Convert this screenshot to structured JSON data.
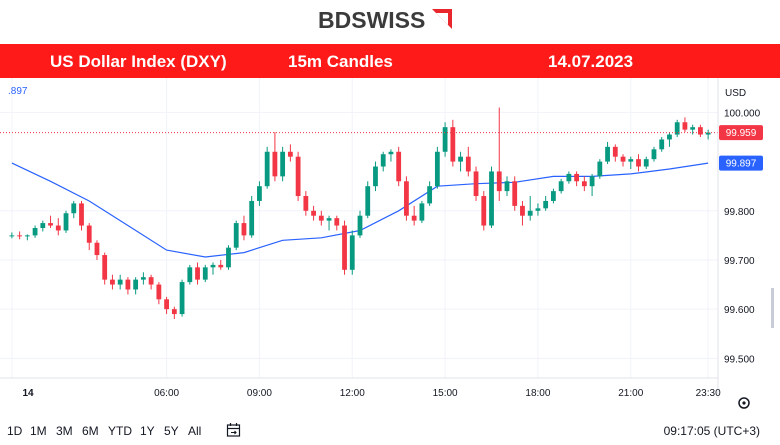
{
  "brand": {
    "part1": "BD",
    "part2": "SWISS",
    "accent": "#e8262b",
    "text_color": "#3b3b3b"
  },
  "banner": {
    "title": "US Dollar Index (DXY)",
    "interval": "15m Candles",
    "date": "14.07.2023",
    "color": "#ff1a1a"
  },
  "chart_data": {
    "type": "candlestick",
    "currency": "USD",
    "ylim": [
      99.46,
      100.07
    ],
    "y_ticks": [
      "100.000",
      "99.800",
      "99.700",
      "99.600",
      "99.500"
    ],
    "y_tick_values": [
      100.0,
      99.8,
      99.7,
      99.6,
      99.5
    ],
    "x_ticks": [
      "14",
      "06:00",
      "09:00",
      "12:00",
      "15:00",
      "18:00",
      "21:00",
      "23:30"
    ],
    "x_tick_values": [
      0,
      20,
      32,
      44,
      56,
      68,
      80,
      90
    ],
    "last_price": {
      "label": "99.959",
      "value": 99.959,
      "color": "#f23645"
    },
    "moving_average": {
      "label": "99.897",
      "value": 99.897,
      "color": "#2962ff",
      "left_label": ".897",
      "points": [
        [
          0,
          99.897
        ],
        [
          5,
          99.86
        ],
        [
          10,
          99.82
        ],
        [
          15,
          99.77
        ],
        [
          20,
          99.72
        ],
        [
          25,
          99.706
        ],
        [
          30,
          99.715
        ],
        [
          35,
          99.74
        ],
        [
          40,
          99.745
        ],
        [
          45,
          99.76
        ],
        [
          50,
          99.8
        ],
        [
          55,
          99.85
        ],
        [
          60,
          99.855
        ],
        [
          65,
          99.858
        ],
        [
          70,
          99.87
        ],
        [
          75,
          99.87
        ],
        [
          80,
          99.875
        ],
        [
          85,
          99.885
        ],
        [
          90,
          99.897
        ]
      ]
    },
    "up_color": "#089981",
    "down_color": "#f23645",
    "candles": [
      [
        99.75,
        99.756,
        99.744,
        99.75
      ],
      [
        99.75,
        99.758,
        99.742,
        99.748
      ],
      [
        99.748,
        99.752,
        99.74,
        99.75
      ],
      [
        99.75,
        99.77,
        99.745,
        99.765
      ],
      [
        99.765,
        99.78,
        99.758,
        99.775
      ],
      [
        99.775,
        99.79,
        99.765,
        99.77
      ],
      [
        99.77,
        99.785,
        99.75,
        99.76
      ],
      [
        99.76,
        99.8,
        99.755,
        99.795
      ],
      [
        99.795,
        99.82,
        99.785,
        99.815
      ],
      [
        99.815,
        99.82,
        99.76,
        99.77
      ],
      [
        99.77,
        99.775,
        99.72,
        99.735
      ],
      [
        99.735,
        99.74,
        99.7,
        99.71
      ],
      [
        99.71,
        99.715,
        99.65,
        99.66
      ],
      [
        99.66,
        99.67,
        99.64,
        99.65
      ],
      [
        99.65,
        99.67,
        99.64,
        99.66
      ],
      [
        99.66,
        99.665,
        99.63,
        99.64
      ],
      [
        99.64,
        99.665,
        99.63,
        99.66
      ],
      [
        99.66,
        99.675,
        99.65,
        99.665
      ],
      [
        99.665,
        99.67,
        99.64,
        99.65
      ],
      [
        99.65,
        99.655,
        99.61,
        99.62
      ],
      [
        99.62,
        99.625,
        99.59,
        99.6
      ],
      [
        99.6,
        99.605,
        99.58,
        99.59
      ],
      [
        99.59,
        99.66,
        99.585,
        99.655
      ],
      [
        99.655,
        99.69,
        99.65,
        99.685
      ],
      [
        99.685,
        99.695,
        99.65,
        99.66
      ],
      [
        99.66,
        99.69,
        99.655,
        99.685
      ],
      [
        99.685,
        99.695,
        99.67,
        99.69
      ],
      [
        99.69,
        99.7,
        99.68,
        99.685
      ],
      [
        99.685,
        99.73,
        99.68,
        99.725
      ],
      [
        99.725,
        99.78,
        99.72,
        99.775
      ],
      [
        99.775,
        99.79,
        99.74,
        99.75
      ],
      [
        99.75,
        99.83,
        99.745,
        99.82
      ],
      [
        99.82,
        99.86,
        99.81,
        99.85
      ],
      [
        99.85,
        99.93,
        99.845,
        99.92
      ],
      [
        99.92,
        99.96,
        99.86,
        99.87
      ],
      [
        99.87,
        99.93,
        99.86,
        99.92
      ],
      [
        99.92,
        99.935,
        99.9,
        99.91
      ],
      [
        99.91,
        99.92,
        99.82,
        99.83
      ],
      [
        99.83,
        99.84,
        99.79,
        99.8
      ],
      [
        99.8,
        99.81,
        99.78,
        99.79
      ],
      [
        99.79,
        99.8,
        99.77,
        99.78
      ],
      [
        99.78,
        99.79,
        99.76,
        99.785
      ],
      [
        99.785,
        99.79,
        99.76,
        99.77
      ],
      [
        99.77,
        99.78,
        99.67,
        99.68
      ],
      [
        99.68,
        99.76,
        99.67,
        99.75
      ],
      [
        99.75,
        99.8,
        99.745,
        99.79
      ],
      [
        99.79,
        99.86,
        99.785,
        99.85
      ],
      [
        99.85,
        99.9,
        99.84,
        99.89
      ],
      [
        99.89,
        99.92,
        99.88,
        99.915
      ],
      [
        99.915,
        99.925,
        99.9,
        99.92
      ],
      [
        99.92,
        99.93,
        99.85,
        99.86
      ],
      [
        99.86,
        99.87,
        99.78,
        99.79
      ],
      [
        99.79,
        99.81,
        99.77,
        99.78
      ],
      [
        99.78,
        99.82,
        99.775,
        99.815
      ],
      [
        99.815,
        99.86,
        99.81,
        99.85
      ],
      [
        99.85,
        99.93,
        99.845,
        99.92
      ],
      [
        99.92,
        99.98,
        99.91,
        99.97
      ],
      [
        99.97,
        99.985,
        99.89,
        99.9
      ],
      [
        99.9,
        99.92,
        99.88,
        99.91
      ],
      [
        99.91,
        99.93,
        99.87,
        99.88
      ],
      [
        99.88,
        99.89,
        99.82,
        99.83
      ],
      [
        99.83,
        99.84,
        99.76,
        99.77
      ],
      [
        99.77,
        99.89,
        99.765,
        99.88
      ],
      [
        99.88,
        100.01,
        99.82,
        99.84
      ],
      [
        99.84,
        99.87,
        99.83,
        99.86
      ],
      [
        99.86,
        99.87,
        99.8,
        99.81
      ],
      [
        99.81,
        99.82,
        99.77,
        99.79
      ],
      [
        99.79,
        99.83,
        99.78,
        99.8
      ],
      [
        99.8,
        99.815,
        99.79,
        99.805
      ],
      [
        99.805,
        99.83,
        99.8,
        99.82
      ],
      [
        99.82,
        99.845,
        99.815,
        99.84
      ],
      [
        99.84,
        99.865,
        99.835,
        99.86
      ],
      [
        99.86,
        99.88,
        99.855,
        99.875
      ],
      [
        99.875,
        99.88,
        99.85,
        99.86
      ],
      [
        99.86,
        99.87,
        99.84,
        99.85
      ],
      [
        99.85,
        99.875,
        99.83,
        99.87
      ],
      [
        99.87,
        99.905,
        99.865,
        99.9
      ],
      [
        99.9,
        99.94,
        99.895,
        99.93
      ],
      [
        99.93,
        99.935,
        99.9,
        99.91
      ],
      [
        99.91,
        99.915,
        99.89,
        99.9
      ],
      [
        99.9,
        99.91,
        99.885,
        99.905
      ],
      [
        99.905,
        99.915,
        99.88,
        99.89
      ],
      [
        99.89,
        99.91,
        99.885,
        99.905
      ],
      [
        99.905,
        99.93,
        99.9,
        99.925
      ],
      [
        99.925,
        99.95,
        99.92,
        99.945
      ],
      [
        99.945,
        99.96,
        99.93,
        99.955
      ],
      [
        99.955,
        99.985,
        99.95,
        99.98
      ],
      [
        99.98,
        99.99,
        99.96,
        99.965
      ],
      [
        99.965,
        99.975,
        99.955,
        99.97
      ],
      [
        99.97,
        99.975,
        99.95,
        99.955
      ],
      [
        99.955,
        99.965,
        99.945,
        99.959
      ]
    ]
  },
  "toolbar": {
    "timeframes": [
      "1D",
      "1M",
      "3M",
      "6M",
      "YTD",
      "1Y",
      "5Y",
      "All"
    ],
    "calendar_icon": "calendar-range-icon",
    "settings_icon": "gear-icon",
    "clock": "09:17:05 (UTC+3)"
  }
}
